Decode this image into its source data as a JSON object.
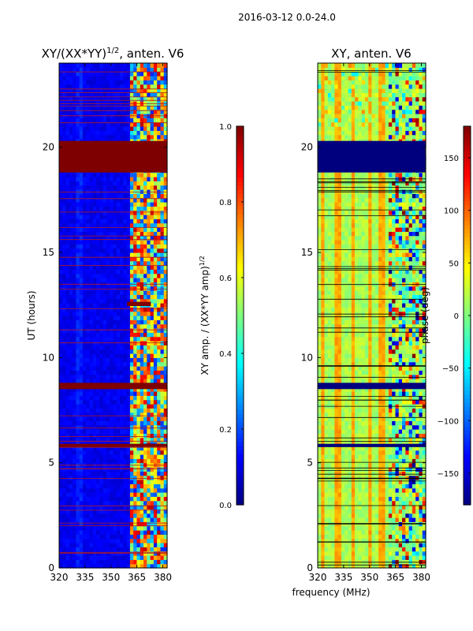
{
  "figure": {
    "suptitle": "2016-03-12 0.0-24.0",
    "shared_xlabel": "frequency (MHz)",
    "colors": {
      "jet": [
        "#00007f",
        "#0000ff",
        "#007fff",
        "#00ffff",
        "#7fff7f",
        "#ffff00",
        "#ff7f00",
        "#ff0000",
        "#7f0000"
      ],
      "flag_line_amp": "#b31a1a",
      "flag_line_phase": "#000000"
    }
  },
  "chart_data": [
    {
      "id": "amp",
      "type": "heatmap",
      "title": "XY/(XX*YY)",
      "title_exponent": "1/2",
      "title_suffix": ", anten. V6",
      "xlabel": "",
      "ylabel": "UT (hours)",
      "xlim": [
        320,
        382.5
      ],
      "ylim": [
        0,
        24
      ],
      "xticks": [
        320,
        335,
        350,
        365,
        380
      ],
      "yticks": [
        0,
        5,
        10,
        15,
        20
      ],
      "approx_flagged_full_band_hours": [
        [
          18.8,
          20.3
        ],
        [
          8.5,
          8.8
        ],
        [
          5.75,
          5.9
        ]
      ],
      "approx_flagged_partial_hours": [
        [
          12.45,
          12.65
        ]
      ],
      "colorbar": {
        "label": "XY amp. / (XX*YY amp)",
        "label_exponent": "1/2",
        "vmin": 0.0,
        "vmax": 1.0,
        "ticks": [
          0.0,
          0.2,
          0.4,
          0.6,
          0.8,
          1.0
        ],
        "tick_labels": [
          "0.0",
          "0.2",
          "0.4",
          "0.6",
          "0.8",
          "1.0"
        ]
      }
    },
    {
      "id": "phase",
      "type": "heatmap",
      "title": "XY, anten. V6",
      "xlabel": "frequency (MHz)",
      "ylabel": "",
      "xlim": [
        320,
        382.5
      ],
      "ylim": [
        0,
        24
      ],
      "xticks": [
        320,
        335,
        350,
        365,
        380
      ],
      "yticks": [
        0,
        5,
        10,
        15,
        20
      ],
      "approx_flagged_full_band_hours": [
        [
          18.8,
          20.3
        ],
        [
          8.5,
          8.8
        ],
        [
          5.75,
          5.9
        ]
      ],
      "colorbar": {
        "label": "phase (deg)",
        "vmin": -180,
        "vmax": 180,
        "ticks": [
          -150,
          -100,
          -50,
          0,
          50,
          100,
          150
        ],
        "tick_labels": [
          "−150",
          "−100",
          "−50",
          "0",
          "50",
          "100",
          "150"
        ]
      }
    }
  ]
}
